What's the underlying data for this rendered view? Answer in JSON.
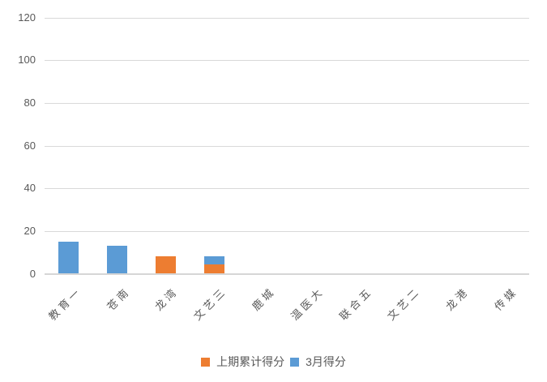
{
  "chart_data": {
    "type": "bar",
    "stacked": true,
    "title": "",
    "xlabel": "",
    "ylabel": "",
    "categories": [
      "教育一",
      "苍南",
      "龙湾",
      "文艺三",
      "鹿城",
      "温医大",
      "联合五",
      "文艺二",
      "龙港",
      "传媒"
    ],
    "series": [
      {
        "name": "上期累计得分",
        "color": "#ED7D31",
        "values": [
          0,
          0,
          8,
          4,
          0,
          0,
          0,
          0,
          0,
          0
        ]
      },
      {
        "name": "3月得分",
        "color": "#5B9BD5",
        "values": [
          15,
          13,
          0,
          4,
          0,
          0,
          0,
          0,
          0,
          0
        ]
      }
    ],
    "ylim": [
      0,
      120
    ],
    "yticks": [
      0,
      20,
      40,
      60,
      80,
      100,
      120
    ],
    "grid": true,
    "legend_position": "bottom"
  },
  "colors": {
    "grid": "#D9D9D9",
    "axis_baseline": "#D6D6D6",
    "axis_text": "#595959",
    "background": "#FFFFFF"
  }
}
